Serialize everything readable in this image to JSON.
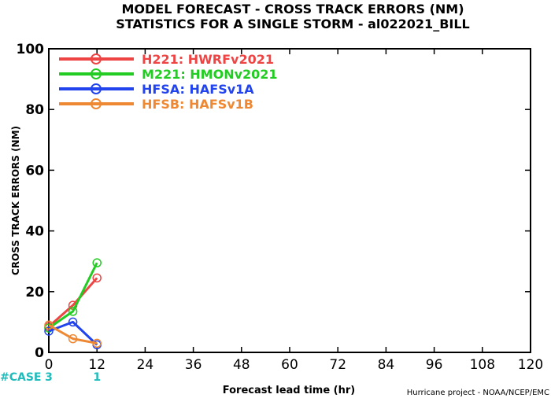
{
  "chart_data": {
    "type": "line",
    "title_line1": "MODEL FORECAST - CROSS TRACK ERRORS (NM)",
    "title_line2": "STATISTICS FOR A SINGLE STORM - al022021_BILL",
    "xlabel": "Forecast lead time (hr)",
    "ylabel": "CROSS TRACK ERRORS (NM)",
    "xlim": [
      0,
      120
    ],
    "ylim": [
      0,
      100
    ],
    "x_ticks": [
      0,
      12,
      24,
      36,
      48,
      60,
      72,
      84,
      96,
      108,
      120
    ],
    "y_ticks": [
      0,
      20,
      40,
      60,
      80,
      100
    ],
    "grid": false,
    "legend_position": "top-left",
    "x": [
      0,
      6,
      12
    ],
    "series": [
      {
        "name": "H221: HWRFv2021",
        "color": "#ee4444",
        "values": [
          8.5,
          15.5,
          24.5
        ]
      },
      {
        "name": "M221: HMONv2021",
        "color": "#22cc22",
        "values": [
          8,
          13.5,
          29.5
        ]
      },
      {
        "name": "HFSA: HAFSv1A",
        "color": "#2244ee",
        "values": [
          7,
          10,
          2.5
        ]
      },
      {
        "name": "HFSB: HAFSv1B",
        "color": "#ee8833",
        "values": [
          9,
          4.5,
          3
        ]
      }
    ],
    "case_label": "#CASE",
    "case_counts": [
      {
        "x": 0,
        "count": "3"
      },
      {
        "x": 12,
        "count": "1"
      }
    ],
    "case_color": "#22bbbb",
    "credit": "Hurricane project - NOAA/NCEP/EMC"
  }
}
